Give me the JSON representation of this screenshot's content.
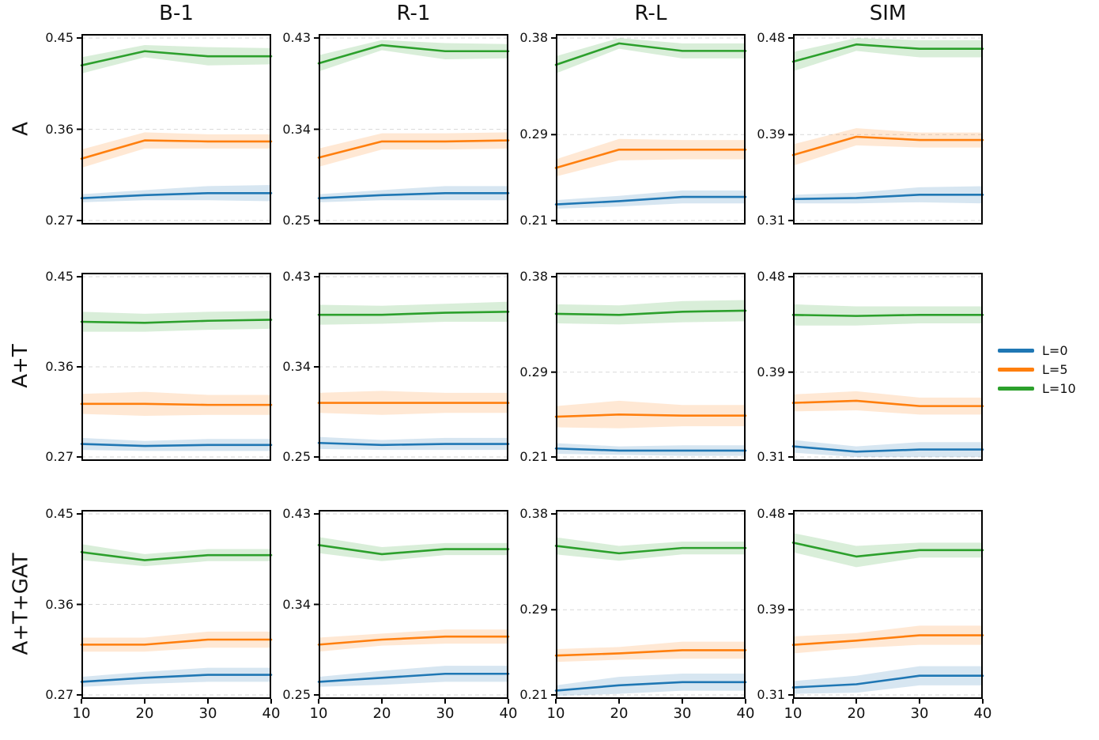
{
  "chart_data": {
    "type": "line",
    "description": "3x4 grid of line charts with shaded confidence bands",
    "x": [
      10,
      20,
      30,
      40
    ],
    "xlim": [
      10,
      40
    ],
    "x_tick_labels": [
      "10",
      "20",
      "30",
      "40"
    ],
    "rows": [
      "A",
      "A+T",
      "A+T+GAT"
    ],
    "columns": [
      "B-1",
      "R-1",
      "R-L",
      "SIM"
    ],
    "grid": "dashed horizontal gridlines at y-ticks",
    "col_axes": {
      "B-1": {
        "ylim": [
          0.27,
          0.45
        ],
        "yticks": [
          0.27,
          0.36,
          0.45
        ]
      },
      "R-1": {
        "ylim": [
          0.25,
          0.43
        ],
        "yticks": [
          0.25,
          0.34,
          0.43
        ]
      },
      "R-L": {
        "ylim": [
          0.21,
          0.38
        ],
        "yticks": [
          0.21,
          0.29,
          0.38
        ]
      },
      "SIM": {
        "ylim": [
          0.31,
          0.48
        ],
        "yticks": [
          0.31,
          0.39,
          0.48
        ]
      }
    },
    "series_colors": {
      "L=0": "#1f77b4",
      "L=5": "#ff7f0e",
      "L=10": "#2ca02c"
    },
    "legend": {
      "position": "right-middle",
      "entries": [
        {
          "label": "L=0",
          "color": "#1f77b4"
        },
        {
          "label": "L=5",
          "color": "#ff7f0e"
        },
        {
          "label": "L=10",
          "color": "#2ca02c"
        }
      ]
    },
    "subplots": [
      {
        "row": "A",
        "col": "B-1",
        "series": [
          {
            "name": "L=0",
            "values": [
              0.292,
              0.295,
              0.297,
              0.297
            ],
            "band": [
              0.004,
              0.005,
              0.007,
              0.008
            ]
          },
          {
            "name": "L=5",
            "values": [
              0.331,
              0.349,
              0.348,
              0.348
            ],
            "band": [
              0.009,
              0.008,
              0.007,
              0.007
            ]
          },
          {
            "name": "L=10",
            "values": [
              0.423,
              0.437,
              0.432,
              0.432
            ],
            "band": [
              0.008,
              0.006,
              0.009,
              0.008
            ]
          }
        ]
      },
      {
        "row": "A",
        "col": "R-1",
        "series": [
          {
            "name": "L=0",
            "values": [
              0.272,
              0.275,
              0.277,
              0.277
            ],
            "band": [
              0.004,
              0.005,
              0.007,
              0.007
            ]
          },
          {
            "name": "L=5",
            "values": [
              0.312,
              0.328,
              0.328,
              0.329
            ],
            "band": [
              0.009,
              0.008,
              0.008,
              0.008
            ]
          },
          {
            "name": "L=10",
            "values": [
              0.405,
              0.423,
              0.417,
              0.417
            ],
            "band": [
              0.008,
              0.005,
              0.008,
              0.007
            ]
          }
        ]
      },
      {
        "row": "A",
        "col": "R-L",
        "series": [
          {
            "name": "L=0",
            "values": [
              0.225,
              0.228,
              0.232,
              0.232
            ],
            "band": [
              0.004,
              0.005,
              0.006,
              0.006
            ]
          },
          {
            "name": "L=5",
            "values": [
              0.259,
              0.276,
              0.276,
              0.276
            ],
            "band": [
              0.008,
              0.01,
              0.009,
              0.009
            ]
          },
          {
            "name": "L=10",
            "values": [
              0.355,
              0.375,
              0.368,
              0.368
            ],
            "band": [
              0.008,
              0.005,
              0.007,
              0.007
            ]
          }
        ]
      },
      {
        "row": "A",
        "col": "SIM",
        "series": [
          {
            "name": "L=0",
            "values": [
              0.33,
              0.331,
              0.334,
              0.334
            ],
            "band": [
              0.004,
              0.005,
              0.007,
              0.008
            ]
          },
          {
            "name": "L=5",
            "values": [
              0.371,
              0.388,
              0.385,
              0.385
            ],
            "band": [
              0.01,
              0.008,
              0.007,
              0.007
            ]
          },
          {
            "name": "L=10",
            "values": [
              0.458,
              0.474,
              0.47,
              0.47
            ],
            "band": [
              0.009,
              0.006,
              0.008,
              0.008
            ]
          }
        ]
      },
      {
        "row": "A+T",
        "col": "B-1",
        "series": [
          {
            "name": "L=0",
            "values": [
              0.283,
              0.281,
              0.282,
              0.282
            ],
            "band": [
              0.006,
              0.005,
              0.006,
              0.006
            ]
          },
          {
            "name": "L=5",
            "values": [
              0.323,
              0.323,
              0.322,
              0.322
            ],
            "band": [
              0.01,
              0.012,
              0.01,
              0.01
            ]
          },
          {
            "name": "L=10",
            "values": [
              0.405,
              0.404,
              0.406,
              0.407
            ],
            "band": [
              0.01,
              0.009,
              0.009,
              0.009
            ]
          }
        ]
      },
      {
        "row": "A+T",
        "col": "R-1",
        "series": [
          {
            "name": "L=0",
            "values": [
              0.264,
              0.262,
              0.263,
              0.263
            ],
            "band": [
              0.006,
              0.005,
              0.006,
              0.006
            ]
          },
          {
            "name": "L=5",
            "values": [
              0.304,
              0.304,
              0.304,
              0.304
            ],
            "band": [
              0.01,
              0.012,
              0.01,
              0.01
            ]
          },
          {
            "name": "L=10",
            "values": [
              0.392,
              0.392,
              0.394,
              0.395
            ],
            "band": [
              0.01,
              0.009,
              0.009,
              0.01
            ]
          }
        ]
      },
      {
        "row": "A+T",
        "col": "R-L",
        "series": [
          {
            "name": "L=0",
            "values": [
              0.218,
              0.216,
              0.216,
              0.216
            ],
            "band": [
              0.005,
              0.004,
              0.005,
              0.005
            ]
          },
          {
            "name": "L=5",
            "values": [
              0.248,
              0.25,
              0.249,
              0.249
            ],
            "band": [
              0.01,
              0.013,
              0.01,
              0.01
            ]
          },
          {
            "name": "L=10",
            "values": [
              0.345,
              0.344,
              0.347,
              0.348
            ],
            "band": [
              0.009,
              0.009,
              0.01,
              0.01
            ]
          }
        ]
      },
      {
        "row": "A+T",
        "col": "SIM",
        "series": [
          {
            "name": "L=0",
            "values": [
              0.32,
              0.315,
              0.317,
              0.317
            ],
            "band": [
              0.006,
              0.005,
              0.007,
              0.007
            ]
          },
          {
            "name": "L=5",
            "values": [
              0.361,
              0.363,
              0.358,
              0.358
            ],
            "band": [
              0.008,
              0.009,
              0.008,
              0.008
            ]
          },
          {
            "name": "L=10",
            "values": [
              0.444,
              0.443,
              0.444,
              0.444
            ],
            "band": [
              0.01,
              0.009,
              0.008,
              0.008
            ]
          }
        ]
      },
      {
        "row": "A+T+GAT",
        "col": "B-1",
        "series": [
          {
            "name": "L=0",
            "values": [
              0.283,
              0.287,
              0.29,
              0.29
            ],
            "band": [
              0.005,
              0.006,
              0.007,
              0.007
            ]
          },
          {
            "name": "L=5",
            "values": [
              0.32,
              0.32,
              0.325,
              0.325
            ],
            "band": [
              0.007,
              0.007,
              0.008,
              0.008
            ]
          },
          {
            "name": "L=10",
            "values": [
              0.412,
              0.404,
              0.409,
              0.409
            ],
            "band": [
              0.008,
              0.006,
              0.006,
              0.006
            ]
          }
        ]
      },
      {
        "row": "A+T+GAT",
        "col": "R-1",
        "series": [
          {
            "name": "L=0",
            "values": [
              0.263,
              0.267,
              0.271,
              0.271
            ],
            "band": [
              0.005,
              0.007,
              0.008,
              0.008
            ]
          },
          {
            "name": "L=5",
            "values": [
              0.3,
              0.305,
              0.308,
              0.308
            ],
            "band": [
              0.007,
              0.006,
              0.007,
              0.007
            ]
          },
          {
            "name": "L=10",
            "values": [
              0.399,
              0.39,
              0.395,
              0.395
            ],
            "band": [
              0.008,
              0.007,
              0.006,
              0.006
            ]
          }
        ]
      },
      {
        "row": "A+T+GAT",
        "col": "R-L",
        "series": [
          {
            "name": "L=0",
            "values": [
              0.214,
              0.219,
              0.222,
              0.222
            ],
            "band": [
              0.005,
              0.008,
              0.008,
              0.008
            ]
          },
          {
            "name": "L=5",
            "values": [
              0.247,
              0.249,
              0.252,
              0.252
            ],
            "band": [
              0.006,
              0.006,
              0.008,
              0.008
            ]
          },
          {
            "name": "L=10",
            "values": [
              0.35,
              0.343,
              0.348,
              0.348
            ],
            "band": [
              0.008,
              0.007,
              0.006,
              0.006
            ]
          }
        ]
      },
      {
        "row": "A+T+GAT",
        "col": "SIM",
        "series": [
          {
            "name": "L=0",
            "values": [
              0.317,
              0.32,
              0.328,
              0.328
            ],
            "band": [
              0.006,
              0.008,
              0.009,
              0.009
            ]
          },
          {
            "name": "L=5",
            "values": [
              0.357,
              0.361,
              0.366,
              0.366
            ],
            "band": [
              0.008,
              0.007,
              0.009,
              0.009
            ]
          },
          {
            "name": "L=10",
            "values": [
              0.453,
              0.44,
              0.446,
              0.446
            ],
            "band": [
              0.009,
              0.01,
              0.007,
              0.007
            ]
          }
        ]
      }
    ]
  }
}
